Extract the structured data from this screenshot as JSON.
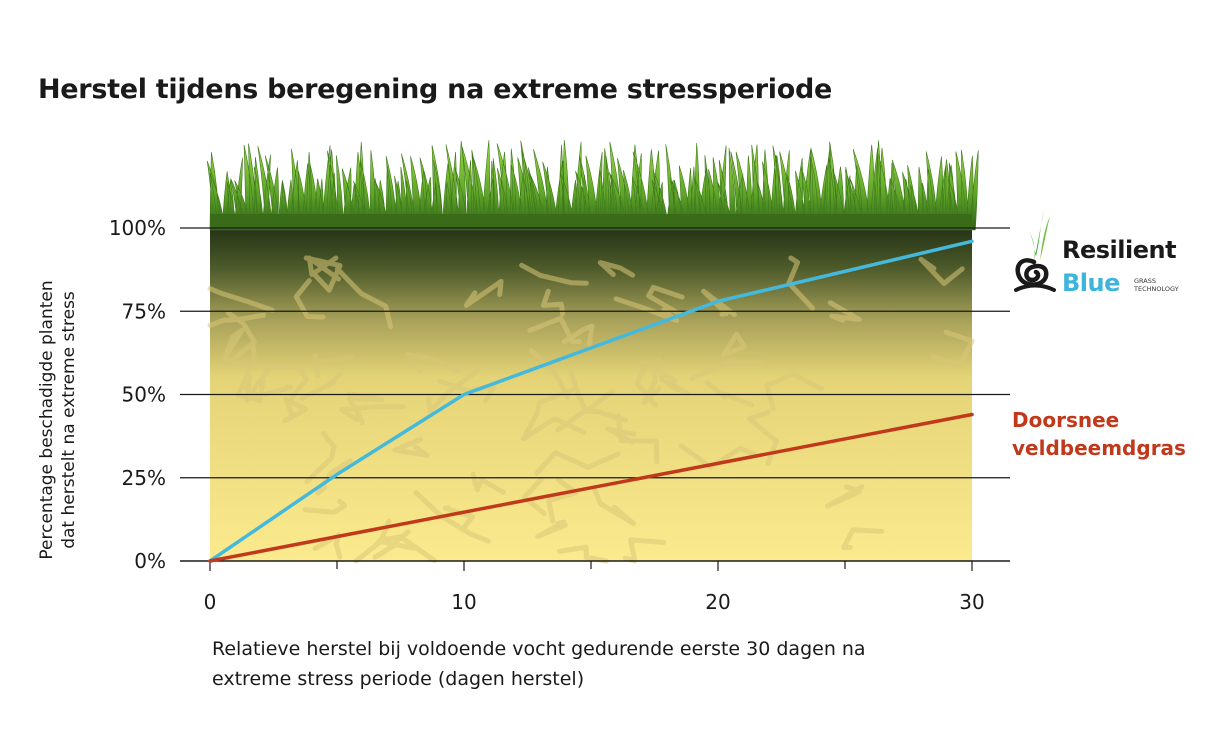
{
  "title": "Herstel tijdens beregening na extreme stressperiode",
  "chart_data": {
    "type": "line",
    "title": "Herstel tijdens beregening na extreme stressperiode",
    "ylabel_lines": [
      "Percentage beschadigde planten",
      "dat herstelt na extreme stress"
    ],
    "xlabel_lines": [
      "Relatieve herstel bij voldoende vocht gedurende eerste 30 dagen na",
      "extreme stress periode (dagen herstel)"
    ],
    "xlim": [
      0,
      30
    ],
    "ylim": [
      0,
      100
    ],
    "x_ticks": [
      0,
      10,
      20,
      30
    ],
    "x_minor_ticks": [
      5,
      15,
      25
    ],
    "y_ticks": [
      0,
      25,
      50,
      75,
      100
    ],
    "y_tick_labels": [
      "0%",
      "25%",
      "50%",
      "75%",
      "100%"
    ],
    "grid": true,
    "series": [
      {
        "name": "Resilient Blue",
        "color": "#45b9dc",
        "x": [
          0,
          5,
          10,
          20,
          30
        ],
        "y": [
          0,
          26,
          50,
          78,
          96
        ]
      },
      {
        "name": "Doorsnee veldbeemdgras",
        "color": "#c0391b",
        "x": [
          0,
          30
        ],
        "y": [
          0,
          44
        ]
      }
    ]
  },
  "logo": {
    "word1": "Resilient",
    "word2": "Blue",
    "sub_line1": "GRASS",
    "sub_line2": "TECHNOLOGY",
    "icon": "grass-swirl-icon"
  },
  "series_label": {
    "line1": "Doorsnee",
    "line2": "veldbeemdgras"
  },
  "colors": {
    "soil_top": "#2c3a1c",
    "soil_bottom": "#fbe98d",
    "grass_dark": "#4c8a1e",
    "grass_light": "#8ccb3a"
  }
}
